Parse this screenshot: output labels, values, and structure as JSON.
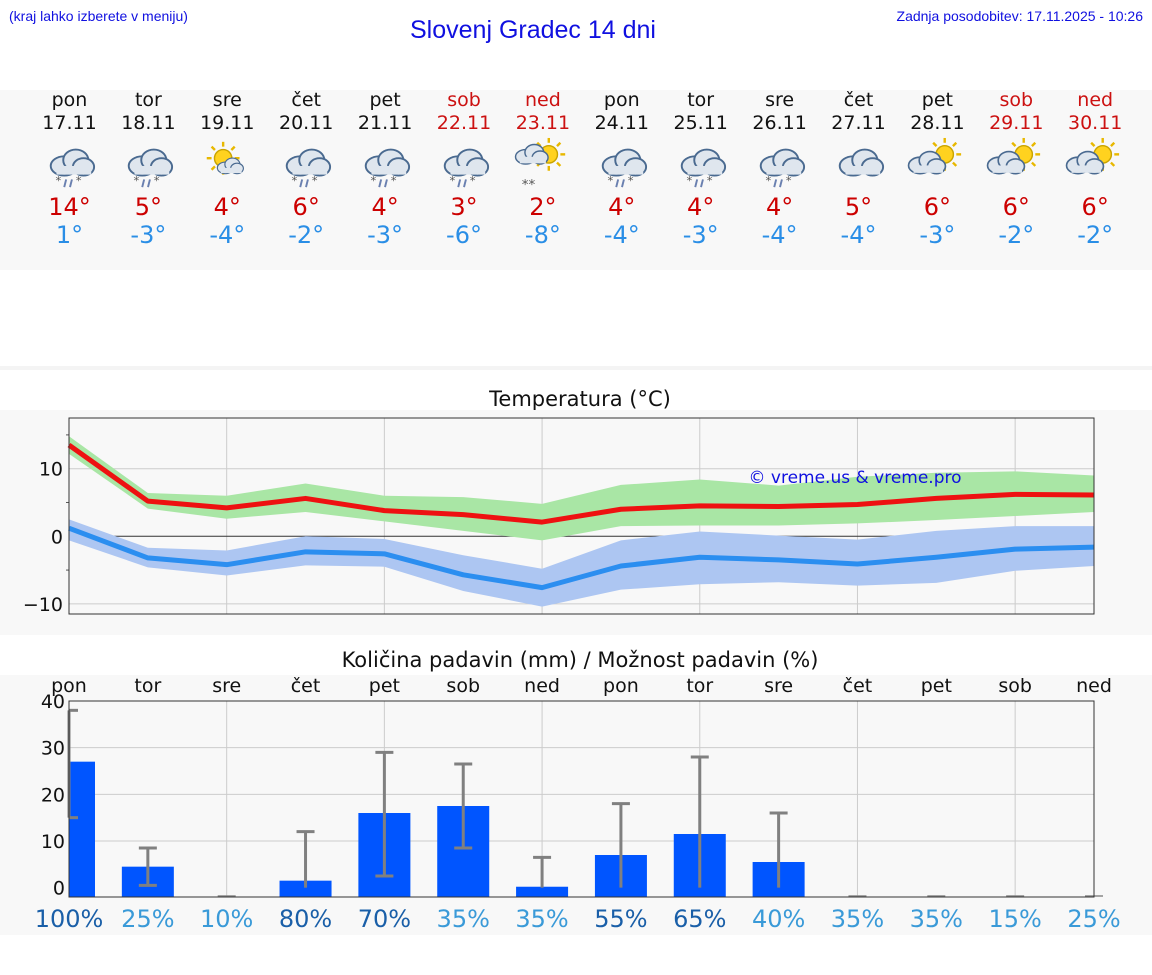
{
  "header": {
    "menu_hint": "(kraj lahko izberete v meniju)",
    "title": "Slovenj Gradec 14 dni",
    "updated": "Zadnja posodobitev: 17.11.2025 - 10:26"
  },
  "days": [
    {
      "name": "pon",
      "date": "17.11",
      "weekend": false,
      "icon": "snow-rain-cloud",
      "tmax": "14°",
      "tmin": "1°"
    },
    {
      "name": "tor",
      "date": "18.11",
      "weekend": false,
      "icon": "snow-rain-cloud",
      "tmax": "5°",
      "tmin": "-3°"
    },
    {
      "name": "sre",
      "date": "19.11",
      "weekend": false,
      "icon": "sun-small-cloud",
      "tmax": "4°",
      "tmin": "-4°"
    },
    {
      "name": "čet",
      "date": "20.11",
      "weekend": false,
      "icon": "snow-rain-cloud",
      "tmax": "6°",
      "tmin": "-2°"
    },
    {
      "name": "pet",
      "date": "21.11",
      "weekend": false,
      "icon": "snow-rain-cloud",
      "tmax": "4°",
      "tmin": "-3°"
    },
    {
      "name": "sob",
      "date": "22.11",
      "weekend": true,
      "icon": "snow-rain-cloud",
      "tmax": "3°",
      "tmin": "-6°"
    },
    {
      "name": "ned",
      "date": "23.11",
      "weekend": true,
      "icon": "sun-snow",
      "tmax": "2°",
      "tmin": "-8°"
    },
    {
      "name": "pon",
      "date": "24.11",
      "weekend": false,
      "icon": "snow-rain-cloud",
      "tmax": "4°",
      "tmin": "-4°"
    },
    {
      "name": "tor",
      "date": "25.11",
      "weekend": false,
      "icon": "snow-rain-cloud",
      "tmax": "4°",
      "tmin": "-3°"
    },
    {
      "name": "sre",
      "date": "26.11",
      "weekend": false,
      "icon": "snow-rain-cloud",
      "tmax": "4°",
      "tmin": "-4°"
    },
    {
      "name": "čet",
      "date": "27.11",
      "weekend": false,
      "icon": "cloud",
      "tmax": "5°",
      "tmin": "-4°"
    },
    {
      "name": "pet",
      "date": "28.11",
      "weekend": false,
      "icon": "sun-cloud",
      "tmax": "6°",
      "tmin": "-3°"
    },
    {
      "name": "sob",
      "date": "29.11",
      "weekend": true,
      "icon": "sun-cloud",
      "tmax": "6°",
      "tmin": "-2°"
    },
    {
      "name": "ned",
      "date": "30.11",
      "weekend": true,
      "icon": "sun-cloud",
      "tmax": "6°",
      "tmin": "-2°"
    }
  ],
  "colors": {
    "max": "#ee1111",
    "max_band": "#a9e6a5",
    "min": "#2b8ef0",
    "min_band": "#adc6f2",
    "bar": "#0055ff",
    "whisker": "#808080"
  },
  "chart_data": [
    {
      "type": "line",
      "title": "Temperatura (°C)",
      "watermark": "© vreme.us & vreme.pro",
      "ylim": [
        -11.5,
        17.5
      ],
      "yticks": [
        {
          "v": 10,
          "label": "10"
        },
        {
          "v": 0,
          "label": "0"
        },
        {
          "v": -10,
          "label": "−10"
        }
      ],
      "x": [
        0,
        1,
        2,
        3,
        4,
        5,
        6,
        7,
        8,
        9,
        10,
        11,
        12,
        13
      ],
      "series": [
        {
          "name": "max",
          "values": [
            13.5,
            5.2,
            4.2,
            5.6,
            3.8,
            3.2,
            2.1,
            4.0,
            4.5,
            4.4,
            4.7,
            5.6,
            6.2,
            6.1
          ],
          "band_low": [
            12.2,
            4.1,
            2.6,
            3.6,
            2.2,
            0.8,
            -0.6,
            1.5,
            1.6,
            1.6,
            1.9,
            2.4,
            3.0,
            3.6
          ],
          "band_high": [
            14.8,
            6.4,
            6.0,
            7.8,
            6.0,
            5.8,
            4.8,
            7.6,
            8.4,
            7.5,
            8.8,
            9.4,
            9.6,
            9.0
          ]
        },
        {
          "name": "min",
          "values": [
            1.2,
            -3.2,
            -4.2,
            -2.3,
            -2.6,
            -5.7,
            -7.6,
            -4.4,
            -3.1,
            -3.5,
            -4.1,
            -3.1,
            -1.9,
            -1.6
          ],
          "band_low": [
            -0.6,
            -4.6,
            -5.8,
            -4.3,
            -4.5,
            -8.1,
            -10.4,
            -7.9,
            -7.1,
            -6.8,
            -7.3,
            -6.9,
            -5.1,
            -4.4
          ],
          "band_high": [
            2.5,
            -1.7,
            -2.1,
            0.0,
            -0.4,
            -2.8,
            -4.8,
            -0.6,
            0.7,
            0.1,
            -0.5,
            0.8,
            1.5,
            1.5
          ]
        }
      ]
    },
    {
      "type": "bar",
      "title": "Količina padavin (mm) / Možnost padavin (%)",
      "categories": [
        "pon",
        "tor",
        "sre",
        "čet",
        "pet",
        "sob",
        "ned",
        "pon",
        "tor",
        "sre",
        "čet",
        "pet",
        "sob",
        "ned"
      ],
      "ylim": [
        -2,
        40
      ],
      "yticks": [
        {
          "v": 40,
          "label": "40"
        },
        {
          "v": 30,
          "label": "30"
        },
        {
          "v": 20,
          "label": "20"
        },
        {
          "v": 10,
          "label": "10"
        },
        {
          "v": 0,
          "label": "0"
        }
      ],
      "values": [
        27,
        4.5,
        0,
        1.5,
        16,
        17.5,
        0.2,
        7,
        11.5,
        5.5,
        0,
        0,
        0,
        0
      ],
      "err_low": [
        15,
        0.5,
        0,
        0,
        2.5,
        8.5,
        0,
        0,
        0,
        0,
        0,
        0,
        0,
        0
      ],
      "err_high": [
        38,
        8.5,
        0,
        12,
        29,
        26.5,
        6.5,
        18,
        28,
        16,
        0,
        0,
        0,
        0
      ],
      "probability": [
        "100%",
        "25%",
        "10%",
        "80%",
        "70%",
        "35%",
        "35%",
        "55%",
        "65%",
        "40%",
        "35%",
        "35%",
        "15%",
        "25%"
      ],
      "probability_values": [
        100,
        25,
        10,
        80,
        70,
        35,
        35,
        55,
        65,
        40,
        35,
        35,
        15,
        25
      ]
    }
  ]
}
